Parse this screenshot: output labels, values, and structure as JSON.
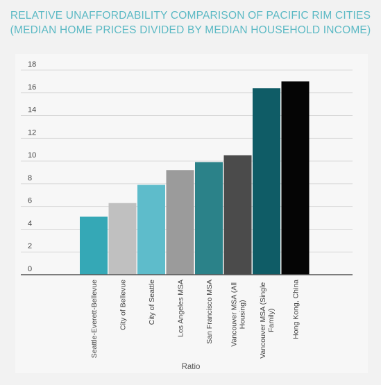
{
  "title_lines": [
    "RELATIVE UNAFFORDABILITY COMPARISON OF PACIFIC RIM CITIES",
    "(MEDIAN HOME PRICES DIVIDED BY MEDIAN HOUSEHOLD INCOME)"
  ],
  "chart_data": {
    "type": "bar",
    "title": "RELATIVE UNAFFORDABILITY COMPARISON OF PACIFIC RIM CITIES (MEDIAN HOME PRICES DIVIDED BY MEDIAN HOUSEHOLD INCOME)",
    "xlabel": "Ratio",
    "ylabel": "",
    "ylim": [
      0,
      18
    ],
    "yticks": [
      0,
      2,
      4,
      6,
      8,
      10,
      12,
      14,
      16,
      18
    ],
    "grid": true,
    "legend": "none",
    "categories": [
      [
        "Seattle-Everett-Bellevue"
      ],
      [
        "City of Bellevue"
      ],
      [
        "City of Seattle"
      ],
      [
        "Los Angeles MSA"
      ],
      [
        "San Francisco MSA"
      ],
      [
        "Vancouver MSA (All",
        "Housing)"
      ],
      [
        "Vancouver MSA (Single",
        "Family)"
      ],
      [
        "Hong Kong, China"
      ]
    ],
    "values": [
      5.1,
      6.3,
      7.9,
      9.2,
      9.9,
      10.5,
      16.4,
      17.0
    ],
    "colors": [
      "#35a8b6",
      "#c0c0c0",
      "#5ebccb",
      "#9b9b9b",
      "#2b8289",
      "#4b4b4b",
      "#0f5c66",
      "#050505"
    ]
  }
}
